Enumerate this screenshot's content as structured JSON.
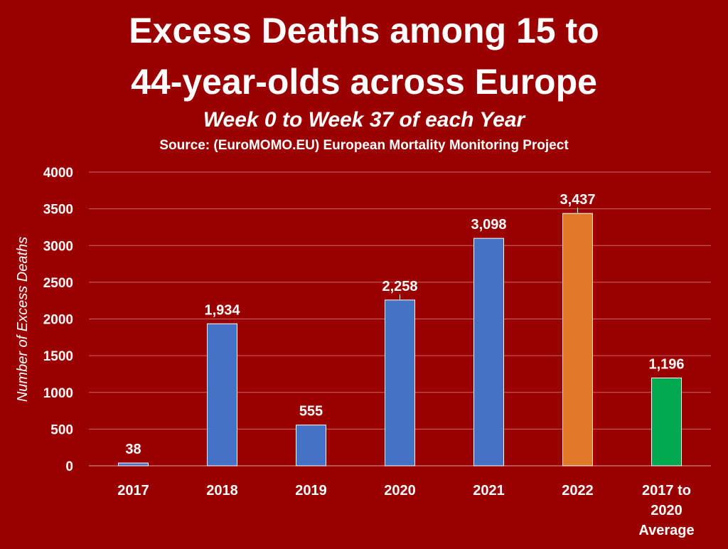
{
  "header": {
    "title_line_1": "Excess Deaths among 15 to",
    "title_line_2": "44-year-olds across Europe",
    "subtitle": "Week 0 to Week 37 of each Year",
    "source": "Source: (EuroMOMO.EU) European Mortality Monitoring Project"
  },
  "chart_data": {
    "type": "bar",
    "title": "Excess Deaths among 15 to 44-year-olds across Europe",
    "subtitle": "Week 0 to Week 37 of each Year",
    "ylabel": "Number of Excess Deaths",
    "xlabel": "",
    "ylim": [
      0,
      4000
    ],
    "yticks": [
      0,
      500,
      1000,
      1500,
      2000,
      2500,
      3000,
      3500,
      4000
    ],
    "ytick_labels": [
      "0",
      "500",
      "1000",
      "1500",
      "2000",
      "2500",
      "3000",
      "3500",
      "4000"
    ],
    "grid": true,
    "legend": "none",
    "categories": [
      [
        "2017"
      ],
      [
        "2018"
      ],
      [
        "2019"
      ],
      [
        "2020"
      ],
      [
        "2021"
      ],
      [
        "2022"
      ],
      [
        "2017 to",
        "2020",
        "Average"
      ]
    ],
    "values": [
      38,
      1934,
      555,
      2258,
      3098,
      3437,
      1196
    ],
    "data_labels": [
      "38",
      "1,934",
      "555",
      "2,258",
      "3,098",
      "3,437",
      "1,196"
    ],
    "colors": [
      "#4472c4",
      "#4472c4",
      "#4472c4",
      "#4472c4",
      "#4472c4",
      "#e07a2a",
      "#00a84f"
    ],
    "background_color": "#9b0000",
    "text_color": "#ffffff"
  }
}
